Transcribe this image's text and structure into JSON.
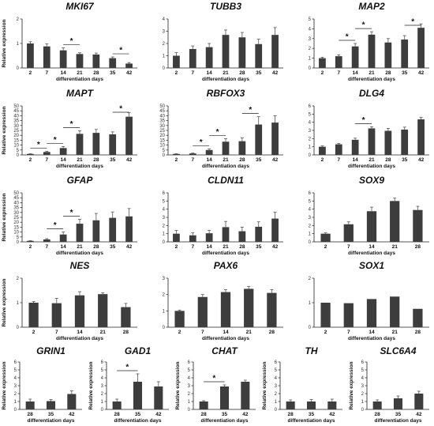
{
  "chart_data": [
    {
      "type": "bar",
      "title": "MKI67",
      "ylabel": "Relative expression",
      "xlabel": "differentiation days",
      "categories": [
        "2",
        "7",
        "14",
        "21",
        "28",
        "35",
        "42"
      ],
      "values": [
        1.0,
        0.88,
        0.72,
        0.57,
        0.55,
        0.4,
        0.18
      ],
      "errors": [
        0.07,
        0.1,
        0.1,
        0.05,
        0.06,
        0.05,
        0.04
      ],
      "ylim": [
        0,
        2
      ],
      "yticks": [
        0,
        1,
        2
      ],
      "significance": [
        {
          "from": 2,
          "to": 3,
          "label": "*"
        },
        {
          "from": 5,
          "to": 6,
          "label": "*"
        }
      ]
    },
    {
      "type": "bar",
      "title": "TUBB3",
      "ylabel": "",
      "xlabel": "differentiation days",
      "categories": [
        "2",
        "7",
        "14",
        "21",
        "28",
        "35",
        "42"
      ],
      "values": [
        1.0,
        1.55,
        1.7,
        2.7,
        2.5,
        1.95,
        2.7
      ],
      "errors": [
        0.25,
        0.25,
        0.3,
        0.4,
        0.4,
        0.4,
        0.6
      ],
      "ylim": [
        0,
        4
      ],
      "yticks": [
        0,
        1,
        2,
        3,
        4
      ],
      "significance": []
    },
    {
      "type": "bar",
      "title": "MAP2",
      "ylabel": "",
      "xlabel": "differentiation days",
      "categories": [
        "2",
        "7",
        "14",
        "21",
        "28",
        "35",
        "42"
      ],
      "values": [
        1.0,
        1.2,
        2.2,
        3.4,
        2.6,
        2.9,
        4.1
      ],
      "errors": [
        0.1,
        0.15,
        0.3,
        0.3,
        0.4,
        0.4,
        0.4
      ],
      "ylim": [
        0,
        5
      ],
      "yticks": [
        0,
        1,
        2,
        3,
        4,
        5
      ],
      "significance": [
        {
          "from": 1,
          "to": 2,
          "label": "*"
        },
        {
          "from": 2,
          "to": 3,
          "label": "*"
        },
        {
          "from": 5,
          "to": 6,
          "label": "*"
        }
      ]
    },
    {
      "type": "bar",
      "title": "MAPT",
      "ylabel": "Relative expression",
      "xlabel": "differentiation days",
      "categories": [
        "2",
        "7",
        "14",
        "21",
        "28",
        "35",
        "42"
      ],
      "values": [
        1.0,
        3.0,
        7.0,
        21.5,
        22.5,
        21.0,
        39.0
      ],
      "errors": [
        0.2,
        0.8,
        1.5,
        3.0,
        3.5,
        2.5,
        4.0
      ],
      "ylim": [
        0,
        50
      ],
      "yticks": [
        0,
        5,
        10,
        15,
        20,
        25,
        30,
        35,
        40,
        45,
        50
      ],
      "significance": [
        {
          "from": 0,
          "to": 1,
          "label": "*"
        },
        {
          "from": 1,
          "to": 2,
          "label": "*"
        },
        {
          "from": 2,
          "to": 3,
          "label": "*"
        },
        {
          "from": 5,
          "to": 6,
          "label": "*"
        }
      ]
    },
    {
      "type": "bar",
      "title": "RBFOX3",
      "ylabel": "",
      "xlabel": "differentiation days",
      "categories": [
        "2",
        "7",
        "14",
        "21",
        "28",
        "35",
        "42"
      ],
      "values": [
        1.0,
        1.5,
        5.0,
        13.5,
        14.0,
        31.0,
        33.0
      ],
      "errors": [
        0.2,
        0.4,
        1.2,
        3.0,
        3.5,
        8.0,
        7.0
      ],
      "ylim": [
        0,
        50
      ],
      "yticks": [
        0,
        5,
        10,
        15,
        20,
        25,
        30,
        35,
        40,
        45,
        50
      ],
      "significance": [
        {
          "from": 1,
          "to": 2,
          "label": "*"
        },
        {
          "from": 2,
          "to": 3,
          "label": "*"
        },
        {
          "from": 4,
          "to": 5,
          "label": "*"
        }
      ]
    },
    {
      "type": "bar",
      "title": "DLG4",
      "ylabel": "",
      "xlabel": "differentiation days",
      "categories": [
        "2",
        "7",
        "14",
        "21",
        "28",
        "35",
        "42"
      ],
      "values": [
        1.0,
        1.3,
        1.85,
        3.25,
        2.95,
        3.1,
        4.35
      ],
      "errors": [
        0.1,
        0.1,
        0.2,
        0.2,
        0.3,
        0.3,
        0.25
      ],
      "ylim": [
        0,
        6
      ],
      "yticks": [
        0,
        1,
        2,
        3,
        4,
        5,
        6
      ],
      "significance": [
        {
          "from": 2,
          "to": 3,
          "label": "*"
        }
      ]
    },
    {
      "type": "bar",
      "title": "GFAP",
      "ylabel": "Relative expression",
      "xlabel": "differentiation days",
      "categories": [
        "2",
        "7",
        "14",
        "21",
        "28",
        "35",
        "42"
      ],
      "values": [
        1.0,
        2.5,
        7.5,
        18.5,
        22.0,
        24.5,
        26.0
      ],
      "errors": [
        0.2,
        0.8,
        2.5,
        4.5,
        7.0,
        6.0,
        8.0
      ],
      "ylim": [
        0,
        50
      ],
      "yticks": [
        0,
        5,
        10,
        15,
        20,
        25,
        30,
        35,
        40,
        45,
        50
      ],
      "significance": [
        {
          "from": 1,
          "to": 2,
          "label": "*"
        },
        {
          "from": 2,
          "to": 3,
          "label": "*"
        }
      ]
    },
    {
      "type": "bar",
      "title": "CLDN11",
      "ylabel": "",
      "xlabel": "differentiation days",
      "categories": [
        "2",
        "7",
        "14",
        "21",
        "28",
        "35",
        "42"
      ],
      "values": [
        1.0,
        0.8,
        1.05,
        1.8,
        1.3,
        1.85,
        2.85
      ],
      "errors": [
        0.4,
        0.3,
        0.35,
        0.7,
        0.5,
        0.6,
        0.8
      ],
      "ylim": [
        0,
        6
      ],
      "yticks": [
        0,
        1,
        2,
        3,
        4,
        5,
        6
      ],
      "significance": []
    },
    {
      "type": "bar",
      "title": "SOX9",
      "ylabel": "",
      "xlabel": "differentiation days",
      "categories": [
        "2",
        "7",
        "14",
        "21",
        "28"
      ],
      "values": [
        1.0,
        2.15,
        3.75,
        5.0,
        3.9
      ],
      "errors": [
        0.1,
        0.3,
        0.5,
        0.35,
        0.45
      ],
      "ylim": [
        0,
        6
      ],
      "yticks": [
        0,
        1,
        2,
        3,
        4,
        5,
        6
      ],
      "significance": []
    },
    {
      "type": "bar",
      "title": "NES",
      "ylabel": "Relative expression",
      "xlabel": "differentiation days",
      "categories": [
        "2",
        "7",
        "14",
        "21",
        "28"
      ],
      "values": [
        1.0,
        0.98,
        1.3,
        1.35,
        0.82
      ],
      "errors": [
        0.05,
        0.2,
        0.15,
        0.05,
        0.15
      ],
      "ylim": [
        0,
        2
      ],
      "yticks": [
        0,
        1,
        2
      ],
      "significance": []
    },
    {
      "type": "bar",
      "title": "PAX6",
      "ylabel": "",
      "xlabel": "differentiation days",
      "categories": [
        "2",
        "7",
        "14",
        "21",
        "28"
      ],
      "values": [
        1.0,
        1.85,
        2.15,
        2.35,
        2.1
      ],
      "errors": [
        0.05,
        0.15,
        0.15,
        0.15,
        0.2
      ],
      "ylim": [
        0,
        3
      ],
      "yticks": [
        0,
        1,
        2,
        3
      ],
      "significance": []
    },
    {
      "type": "bar",
      "title": "SOX1",
      "ylabel": "",
      "xlabel": "differentiation days",
      "categories": [
        "2",
        "7",
        "14",
        "21",
        "28"
      ],
      "values": [
        1.0,
        0.98,
        1.15,
        1.25,
        0.75
      ],
      "errors": [
        0,
        0,
        0,
        0,
        0
      ],
      "ylim": [
        0,
        2
      ],
      "yticks": [
        0,
        1,
        2
      ],
      "significance": []
    },
    {
      "type": "bar",
      "title": "GRIN1",
      "ylabel": "Relative expression",
      "xlabel": "differentiation days",
      "categories": [
        "28",
        "35",
        "42"
      ],
      "values": [
        1.0,
        1.05,
        1.95
      ],
      "errors": [
        0.3,
        0.2,
        0.4
      ],
      "ylim": [
        0,
        6
      ],
      "yticks": [
        0,
        1,
        2,
        3,
        4,
        5,
        6
      ],
      "significance": []
    },
    {
      "type": "bar",
      "title": "GAD1",
      "ylabel": "Relative expression",
      "xlabel": "differentiation days",
      "categories": [
        "28",
        "35",
        "42"
      ],
      "values": [
        1.0,
        3.5,
        2.9
      ],
      "errors": [
        0.3,
        1.0,
        0.6
      ],
      "ylim": [
        0,
        6
      ],
      "yticks": [
        0,
        1,
        2,
        3,
        4,
        5,
        6
      ],
      "significance": [
        {
          "from": 0,
          "to": 1,
          "label": "*"
        }
      ]
    },
    {
      "type": "bar",
      "title": "CHAT",
      "ylabel": "Relative expression",
      "xlabel": "differentiation days",
      "categories": [
        "28",
        "35",
        "42"
      ],
      "values": [
        1.0,
        2.9,
        3.5
      ],
      "errors": [
        0.1,
        0.2,
        0.2
      ],
      "ylim": [
        0,
        6
      ],
      "yticks": [
        0,
        1,
        2,
        3,
        4,
        5,
        6
      ],
      "significance": [
        {
          "from": 0,
          "to": 1,
          "label": "*"
        }
      ]
    },
    {
      "type": "bar",
      "title": "TH",
      "ylabel": "Relative expression",
      "xlabel": "differentiation days",
      "categories": [
        "28",
        "35",
        "42"
      ],
      "values": [
        1.0,
        1.0,
        1.0
      ],
      "errors": [
        0.2,
        0.25,
        0.3
      ],
      "ylim": [
        0,
        6
      ],
      "yticks": [
        0,
        1,
        2,
        3,
        4,
        5,
        6
      ],
      "significance": []
    },
    {
      "type": "bar",
      "title": "SLC6A4",
      "ylabel": "Relative expression",
      "xlabel": "differentiation days",
      "categories": [
        "28",
        "35",
        "42"
      ],
      "values": [
        1.0,
        1.4,
        2.0
      ],
      "errors": [
        0.2,
        0.3,
        0.3
      ],
      "ylim": [
        0,
        6
      ],
      "yticks": [
        0,
        1,
        2,
        3,
        4,
        5,
        6
      ],
      "significance": []
    }
  ],
  "style": {
    "bar_color": "#3d3d3d",
    "axis_color": "#222222"
  }
}
